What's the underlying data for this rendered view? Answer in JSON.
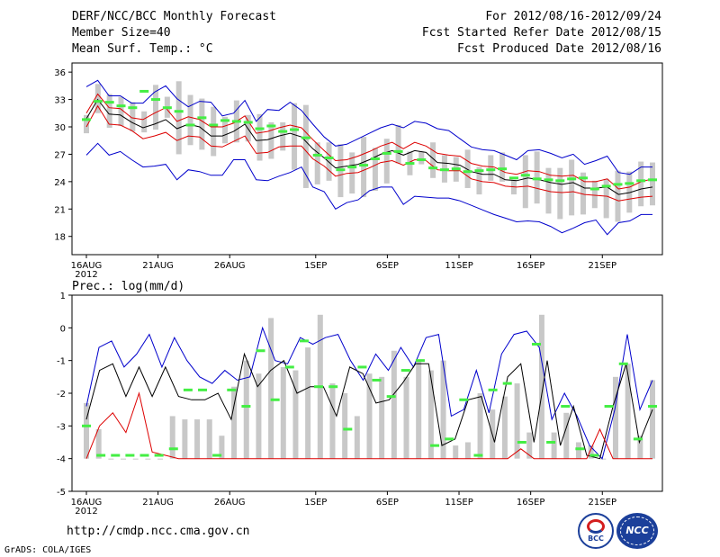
{
  "header": {
    "title": "DERF/NCC/BCC Monthly Forecast",
    "member_size": "Member Size=40",
    "variable1": "Mean Surf. Temp.: °C",
    "period": "For 2012/08/16-2012/09/24",
    "start_ref": "Fcst Started Refer Date 2012/08/15",
    "produced": "Fcst Produced Date 2012/08/16"
  },
  "footer": {
    "url": "http://cmdp.ncc.cma.gov.cn",
    "grads": "GrADS: COLA/IGES",
    "logo_bcc": "BCC",
    "logo_ncc": "NCC"
  },
  "colors": {
    "bar": "#c8c8c8",
    "green": "#44ee44",
    "max": "#0000cc",
    "min": "#0000cc",
    "red": "#dd0000",
    "mean": "#000000"
  },
  "chart_data": [
    {
      "type": "line",
      "title": "Mean Surf. Temp.: °C",
      "x_ticks": [
        "16AUG",
        "21AUG",
        "26AUG",
        "1SEP",
        "6SEP",
        "11SEP",
        "16SEP",
        "21SEP"
      ],
      "x_tick_days": [
        0,
        5,
        10,
        16,
        21,
        26,
        31,
        36
      ],
      "x_year": "2012",
      "days": 40,
      "ylim": [
        16,
        37
      ],
      "y_ticks": [
        18,
        21,
        24,
        27,
        30,
        33,
        36
      ],
      "series": [
        {
          "name": "max",
          "values": [
            34.4,
            35.1,
            33.4,
            33.4,
            32.6,
            32.6,
            33.8,
            34.5,
            33.1,
            32.2,
            32.8,
            32.7,
            31.2,
            31.5,
            32.9,
            30.6,
            31.9,
            31.8,
            32.7,
            31.8,
            30.3,
            28.9,
            27.9,
            28.1,
            28.7,
            29.3,
            29.9,
            30.3,
            29.9,
            30.6,
            30.4,
            29.8,
            29.6,
            28.7,
            27.8,
            27.5,
            27.4,
            26.9,
            26.4,
            27.4,
            27.5,
            27.1,
            26.6,
            27.0,
            25.9,
            26.3,
            26.8,
            25.0,
            24.8,
            25.6,
            25.6
          ]
        },
        {
          "name": "upper",
          "values": [
            31.5,
            33.6,
            32.1,
            32.0,
            31.0,
            30.8,
            31.5,
            32.1,
            30.6,
            31.1,
            30.8,
            30.0,
            30.0,
            30.4,
            31.2,
            29.3,
            29.5,
            29.9,
            30.2,
            29.9,
            28.6,
            27.4,
            26.3,
            26.4,
            26.8,
            27.3,
            27.9,
            28.3,
            27.6,
            28.3,
            27.9,
            27.1,
            26.9,
            26.8,
            26.0,
            25.7,
            25.6,
            25.0,
            24.8,
            25.2,
            25.1,
            24.7,
            24.6,
            24.7,
            24.0,
            24.0,
            24.3,
            23.2,
            23.4,
            24.0,
            24.3
          ]
        },
        {
          "name": "mean",
          "values": [
            30.9,
            33.0,
            31.4,
            31.3,
            30.5,
            29.9,
            30.3,
            30.8,
            29.8,
            30.3,
            30.0,
            29.0,
            29.0,
            29.5,
            30.3,
            28.5,
            28.6,
            29.0,
            29.3,
            28.9,
            27.6,
            26.6,
            25.5,
            25.7,
            25.9,
            26.4,
            27.0,
            27.4,
            26.9,
            27.4,
            27.2,
            26.1,
            26.0,
            25.8,
            25.1,
            24.8,
            24.8,
            24.2,
            24.1,
            24.4,
            24.2,
            23.9,
            23.7,
            23.9,
            23.3,
            23.3,
            23.4,
            22.6,
            22.8,
            23.2,
            23.4
          ]
        },
        {
          "name": "lower",
          "values": [
            30.0,
            32.3,
            30.3,
            30.2,
            29.6,
            28.7,
            29.0,
            29.4,
            28.5,
            29.0,
            28.9,
            27.9,
            27.8,
            28.4,
            29.0,
            27.1,
            27.2,
            27.8,
            27.9,
            27.9,
            26.5,
            25.7,
            24.6,
            24.9,
            25.0,
            25.5,
            26.1,
            26.3,
            25.8,
            26.4,
            26.3,
            25.3,
            25.2,
            25.2,
            24.3,
            24.0,
            23.9,
            23.5,
            23.4,
            23.5,
            23.2,
            22.9,
            22.8,
            22.9,
            22.6,
            22.5,
            22.4,
            21.9,
            22.1,
            22.3,
            22.4
          ]
        },
        {
          "name": "min",
          "values": [
            26.9,
            28.2,
            26.9,
            27.3,
            26.4,
            25.6,
            25.7,
            25.9,
            24.2,
            25.3,
            25.1,
            24.7,
            24.7,
            26.4,
            26.4,
            24.2,
            24.1,
            24.6,
            25.0,
            25.6,
            23.4,
            22.9,
            21.0,
            21.7,
            22.0,
            23.0,
            23.4,
            23.4,
            21.5,
            22.4,
            22.3,
            22.2,
            22.2,
            21.9,
            21.4,
            20.9,
            20.4,
            20.0,
            19.6,
            19.7,
            19.6,
            19.1,
            18.4,
            18.9,
            19.5,
            19.8,
            18.2,
            19.5,
            19.7,
            20.4,
            20.4
          ]
        }
      ],
      "bars_low": [
        29.3,
        31.5,
        29.9,
        30.1,
        29.5,
        29.4,
        29.7,
        31.0,
        27.0,
        28.0,
        27.5,
        26.8,
        28.2,
        28.3,
        28.4,
        26.3,
        26.5,
        27.4,
        25.3,
        23.3,
        23.7,
        24.1,
        22.3,
        22.7,
        22.3,
        23.0,
        23.8,
        26.0,
        24.7,
        25.9,
        24.4,
        23.9,
        24.0,
        23.3,
        22.6,
        24.1,
        24.0,
        22.6,
        21.1,
        21.6,
        20.5,
        19.9,
        20.3,
        20.4,
        21.1,
        20.0,
        19.6,
        20.6,
        21.3,
        21.4
      ],
      "bars_high": [
        31.3,
        34.7,
        33.6,
        33.3,
        32.7,
        31.7,
        34.6,
        33.3,
        35.0,
        33.5,
        33.1,
        32.2,
        31.1,
        32.9,
        31.3,
        31.4,
        30.5,
        30.5,
        32.6,
        32.4,
        28.3,
        28.3,
        28.1,
        27.2,
        28.9,
        27.7,
        28.7,
        30.2,
        27.3,
        27.3,
        28.3,
        26.9,
        26.7,
        27.5,
        25.6,
        26.9,
        27.2,
        24.2,
        26.9,
        27.3,
        25.5,
        25.5,
        26.4,
        25.0,
        24.1,
        24.3,
        25.2,
        25.1,
        26.2,
        26.1
      ],
      "green_marks": [
        30.8,
        32.8,
        32.7,
        32.3,
        32.1,
        33.9,
        33.0,
        32.1,
        31.7,
        30.2,
        31.0,
        30.2,
        30.7,
        30.6,
        30.5,
        29.8,
        30.1,
        29.5,
        29.7,
        28.8,
        26.9,
        26.6,
        25.3,
        25.6,
        25.8,
        26.5,
        27.1,
        27.3,
        26.0,
        26.4,
        25.5,
        25.3,
        25.4,
        25.1,
        25.2,
        25.3,
        25.4,
        24.4,
        24.7,
        24.3,
        24.2,
        24.1,
        24.3,
        24.4,
        23.2,
        23.5,
        23.7,
        23.8,
        24.1,
        24.2
      ]
    },
    {
      "type": "line",
      "title": "Prec.: log(mm/d)",
      "x_ticks": [
        "16AUG",
        "21AUG",
        "26AUG",
        "1SEP",
        "6SEP",
        "11SEP",
        "16SEP",
        "21SEP"
      ],
      "x_tick_days": [
        0,
        5,
        10,
        16,
        21,
        26,
        31,
        36
      ],
      "x_year": "2012",
      "days": 40,
      "ylim": [
        -5,
        1
      ],
      "y_ticks": [
        -5,
        -4,
        -3,
        -2,
        -1,
        0,
        1
      ],
      "series": [
        {
          "name": "max",
          "values": [
            -2.4,
            -0.6,
            -0.4,
            -1.2,
            -0.8,
            -0.2,
            -1.2,
            -0.3,
            -1.0,
            -1.5,
            -1.7,
            -1.3,
            -1.6,
            -1.5,
            0.0,
            -1.0,
            -1.1,
            -0.3,
            -0.5,
            -0.3,
            -0.2,
            -1.0,
            -1.6,
            -0.8,
            -1.3,
            -0.6,
            -1.2,
            -0.3,
            -0.2,
            -2.7,
            -2.5,
            -1.3,
            -2.6,
            -0.8,
            -0.2,
            -0.1,
            -0.6,
            -2.8,
            -2.0,
            -2.7,
            -3.6,
            -4.0,
            -2.5,
            -0.2,
            -2.5,
            -1.6
          ]
        },
        {
          "name": "mean",
          "values": [
            -2.8,
            -1.3,
            -1.1,
            -2.1,
            -1.2,
            -2.1,
            -1.2,
            -2.1,
            -2.2,
            -2.2,
            -2.0,
            -2.8,
            -0.8,
            -1.8,
            -1.3,
            -1.0,
            -2.0,
            -1.8,
            -1.8,
            -2.7,
            -1.2,
            -1.4,
            -2.3,
            -2.2,
            -1.7,
            -1.1,
            -1.1,
            -3.6,
            -3.4,
            -2.2,
            -2.1,
            -3.5,
            -1.5,
            -1.1,
            -3.5,
            -1.0,
            -3.6,
            -2.4,
            -3.9,
            -4.0,
            -2.4,
            -1.1,
            -3.5,
            -2.5
          ]
        },
        {
          "name": "min",
          "values": [
            -4.0,
            -3.0,
            -2.6,
            -3.2,
            -2.0,
            -3.8,
            -3.9,
            -4.0,
            -4.0,
            -4.0,
            -4.0,
            -4.0,
            -4.0,
            -4.0,
            -4.0,
            -4.0,
            -4.0,
            -4.0,
            -4.0,
            -4.0,
            -4.0,
            -4.0,
            -4.0,
            -4.0,
            -4.0,
            -4.0,
            -4.0,
            -4.0,
            -4.0,
            -4.0,
            -4.0,
            -4.0,
            -4.0,
            -3.7,
            -4.0,
            -4.0,
            -4.0,
            -4.0,
            -4.0,
            -3.1,
            -4.0,
            -4.0,
            -4.0,
            -4.0
          ]
        },
        {
          "name": "bars",
          "values": [
            -2.3,
            -3.1,
            -4.0,
            -4.0,
            -4.0,
            -4.0,
            -4.0,
            -2.7,
            -2.8,
            -2.8,
            -2.8,
            -3.3,
            -1.8,
            -1.0,
            -1.4,
            0.3,
            -1.2,
            -1.3,
            -0.6,
            0.4,
            -1.7,
            -2.0,
            -2.7,
            -1.4,
            -1.5,
            -0.7,
            -1.5,
            -1.0,
            -1.3,
            -1.0,
            -3.6,
            -3.5,
            -2.0,
            -2.5,
            -2.1,
            -1.7,
            -3.2,
            0.4,
            -3.2,
            -2.6,
            -3.5,
            -3.6,
            -4.0,
            -1.5,
            -1.1,
            -3.3,
            -1.6
          ]
        },
        {
          "name": "green",
          "values": [
            -3.0,
            -3.9,
            -3.9,
            -3.9,
            -3.9,
            -3.9,
            -3.7,
            -1.9,
            -1.9,
            -3.9,
            -1.9,
            -2.4,
            -0.7,
            -2.2,
            -1.2,
            -0.4,
            -1.8,
            -1.8,
            -3.1,
            -1.2,
            -1.6,
            -2.1,
            -1.3,
            -1.0,
            -3.6,
            -3.4,
            -2.2,
            -3.9,
            -1.9,
            -1.7,
            -3.5,
            -0.5,
            -3.5,
            -2.4,
            -3.7,
            -3.9,
            -2.4,
            -1.1,
            -3.4,
            -2.4
          ]
        }
      ]
    }
  ]
}
